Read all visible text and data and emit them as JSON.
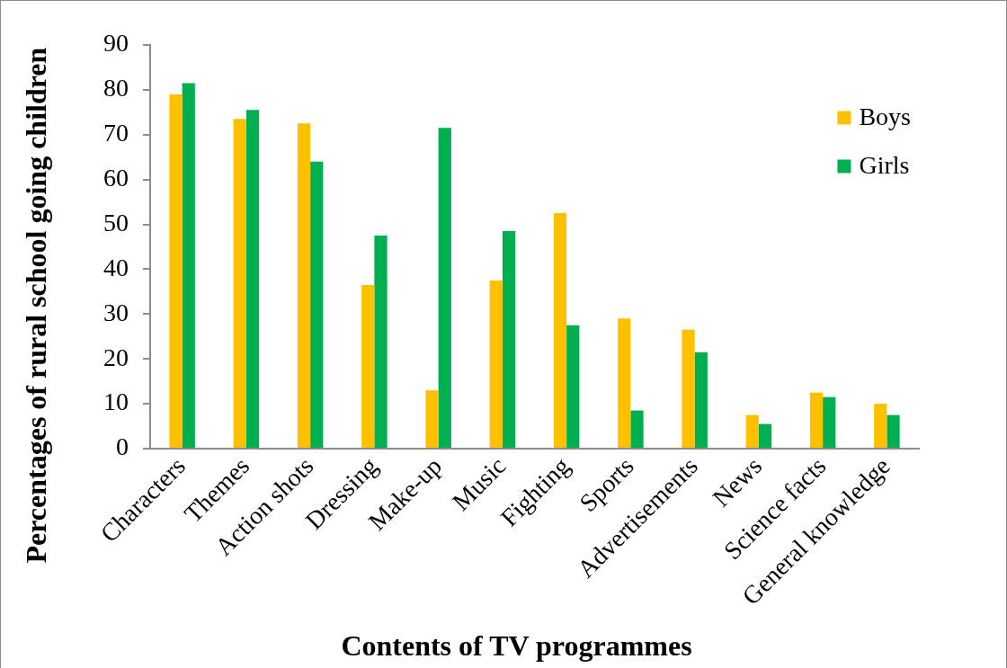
{
  "chart_data": {
    "type": "bar",
    "xlabel": "Contents of TV programmes",
    "ylabel": "Percentages of rural school going children",
    "categories": [
      "Characters",
      "Themes",
      "Action shots",
      "Dressing",
      "Make-up",
      "Music",
      "Fighting",
      "Sports",
      "Advertisements",
      "News",
      "Science facts",
      "General knowledge"
    ],
    "series": [
      {
        "name": "Boys",
        "color": "#ffc000",
        "values": [
          79,
          73.5,
          72.5,
          36.5,
          13,
          37.5,
          52.5,
          29,
          26.5,
          7.5,
          12.5,
          10
        ]
      },
      {
        "name": "Girls",
        "color": "#00b050",
        "values": [
          81.5,
          75.5,
          64,
          47.5,
          71.5,
          48.5,
          27.5,
          8.5,
          21.5,
          5.5,
          11.5,
          7.5
        ]
      }
    ],
    "ylim": [
      0,
      90
    ],
    "yticks": [
      0,
      10,
      20,
      30,
      40,
      50,
      60,
      70,
      80,
      90
    ],
    "legend": "top right"
  }
}
